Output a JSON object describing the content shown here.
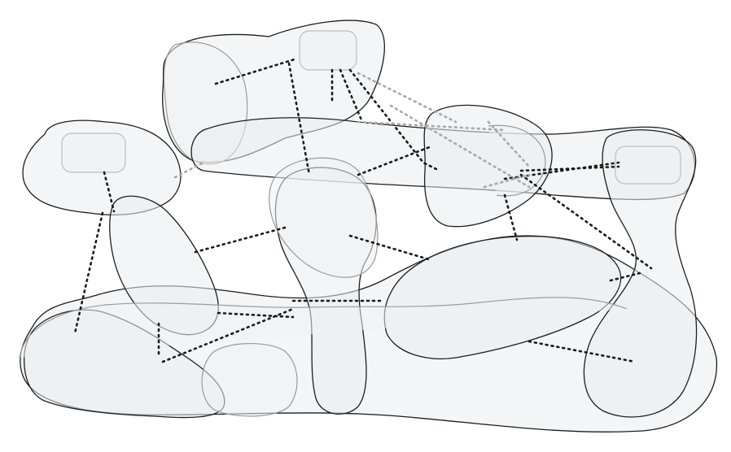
{
  "diagram": {
    "kind": "hypergraph",
    "text_labels": [],
    "colors": {
      "background": "#ffffff",
      "region_fill": "#e9edf1",
      "region_stroke": "#1e1e1e",
      "edge_dark": "#1a1a1a",
      "edge_light": "#a8a8a8"
    }
  }
}
